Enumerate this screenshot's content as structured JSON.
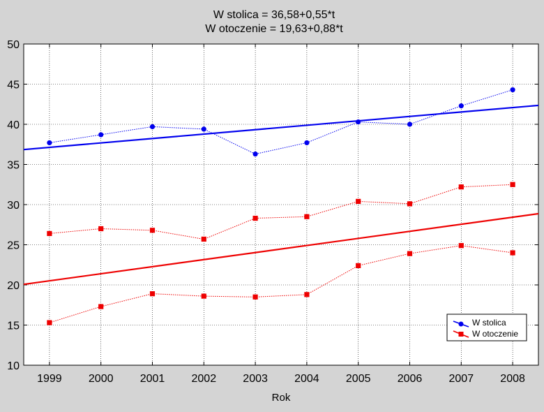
{
  "chart_data": {
    "type": "line",
    "title_lines": [
      "W stolica = 36,58+0,55*t",
      "W otoczenie = 19,63+0,88*t"
    ],
    "xlabel": "Rok",
    "ylabel": "",
    "x": [
      1999,
      2000,
      2001,
      2002,
      2003,
      2004,
      2005,
      2006,
      2007,
      2008
    ],
    "x_tick_labels": [
      "1999",
      "2000",
      "2001",
      "2002",
      "2003",
      "2004",
      "2005",
      "2006",
      "2007",
      "2008"
    ],
    "xlim": [
      1998.5,
      2008.5
    ],
    "ylim": [
      10,
      50
    ],
    "y_ticks": [
      10,
      15,
      20,
      25,
      30,
      35,
      40,
      45,
      50
    ],
    "grid": true,
    "legend_position": "bottom-right",
    "series": [
      {
        "name": "W stolica",
        "color": "#0000ee",
        "marker": "circle",
        "groups": [
          [
            37.7,
            38.7,
            39.7,
            39.4,
            36.3,
            37.7,
            40.3,
            40.0,
            42.3,
            44.3
          ]
        ],
        "trend": {
          "intercept": 36.58,
          "slope": 0.55
        }
      },
      {
        "name": "W otoczenie",
        "color": "#ee0000",
        "marker": "square",
        "groups": [
          [
            26.4,
            27.0,
            26.8,
            25.7,
            28.3,
            28.5,
            30.4,
            30.1,
            32.2,
            32.5
          ],
          [
            15.3,
            17.3,
            18.9,
            18.6,
            18.5,
            18.8,
            22.4,
            23.9,
            24.9,
            24.0
          ]
        ],
        "trend": {
          "intercept": 19.63,
          "slope": 0.88
        }
      }
    ]
  }
}
